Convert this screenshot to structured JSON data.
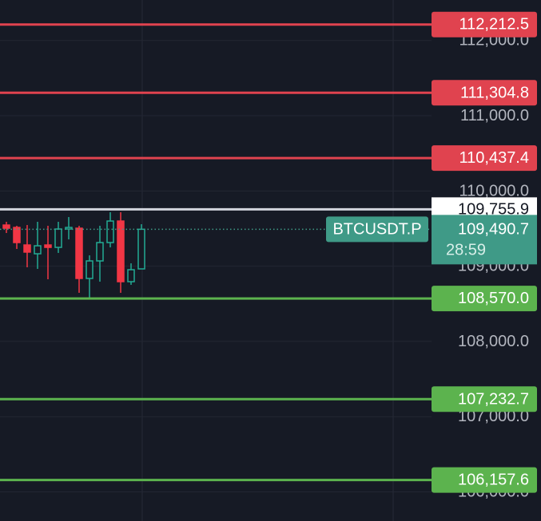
{
  "chart_data": {
    "type": "candlestick",
    "categories": [
      null,
      null,
      null,
      null,
      null,
      null,
      null,
      null,
      null,
      null,
      null,
      null,
      null,
      null
    ],
    "open": [
      109547,
      109515,
      109282,
      109165,
      109282,
      109250,
      109494,
      109505,
      108837,
      109070,
      109314,
      109600,
      108794,
      108964
    ],
    "high": [
      109590,
      109537,
      109547,
      109590,
      109537,
      109590,
      109653,
      109537,
      109144,
      109537,
      109717,
      109717,
      109038,
      109558
    ],
    "low": [
      109441,
      109229,
      108985,
      108964,
      108826,
      109176,
      109356,
      108646,
      108572,
      108794,
      109250,
      108646,
      108752,
      108964
    ],
    "close": [
      109505,
      109314,
      109187,
      109271,
      109250,
      109494,
      109515,
      108837,
      109070,
      109314,
      109600,
      108794,
      108953,
      109490.7
    ],
    "up_color": "#22ab94",
    "down_color": "#f23645",
    "ylim": [
      105613,
      112538
    ],
    "yticks": [
      {
        "value": 106000,
        "label": "106,000.0"
      },
      {
        "value": 107000,
        "label": "107,000.0"
      },
      {
        "value": 108000,
        "label": "108,000.0"
      },
      {
        "value": 109000,
        "label": "109,000.0"
      },
      {
        "value": 110000,
        "label": "110,000.0"
      },
      {
        "value": 111000,
        "label": "111,000.0"
      },
      {
        "value": 112000,
        "label": "112,000.0"
      }
    ],
    "grid": true,
    "levels": {
      "values": [
        112212.5,
        111304.8,
        110437.4,
        108570.0,
        107232.7,
        106157.6
      ],
      "value_labels": [
        "112,212.5",
        "111,304.8",
        "110,437.4",
        "108,570.0",
        "107,232.7",
        "106,157.6"
      ],
      "colors": [
        "#e0434f",
        "#e0434f",
        "#e0434f",
        "#5cb34e",
        "#5cb34e",
        "#5cb34e"
      ]
    },
    "reference_line": {
      "value": 109755.9,
      "label": "109,755.9",
      "color": "#d1d4dc"
    },
    "last_price": {
      "value": 109490.7,
      "label": "109,490.7",
      "symbol": "BTCUSDT.P",
      "countdown": "28:59",
      "color": "#3f9a87"
    }
  }
}
